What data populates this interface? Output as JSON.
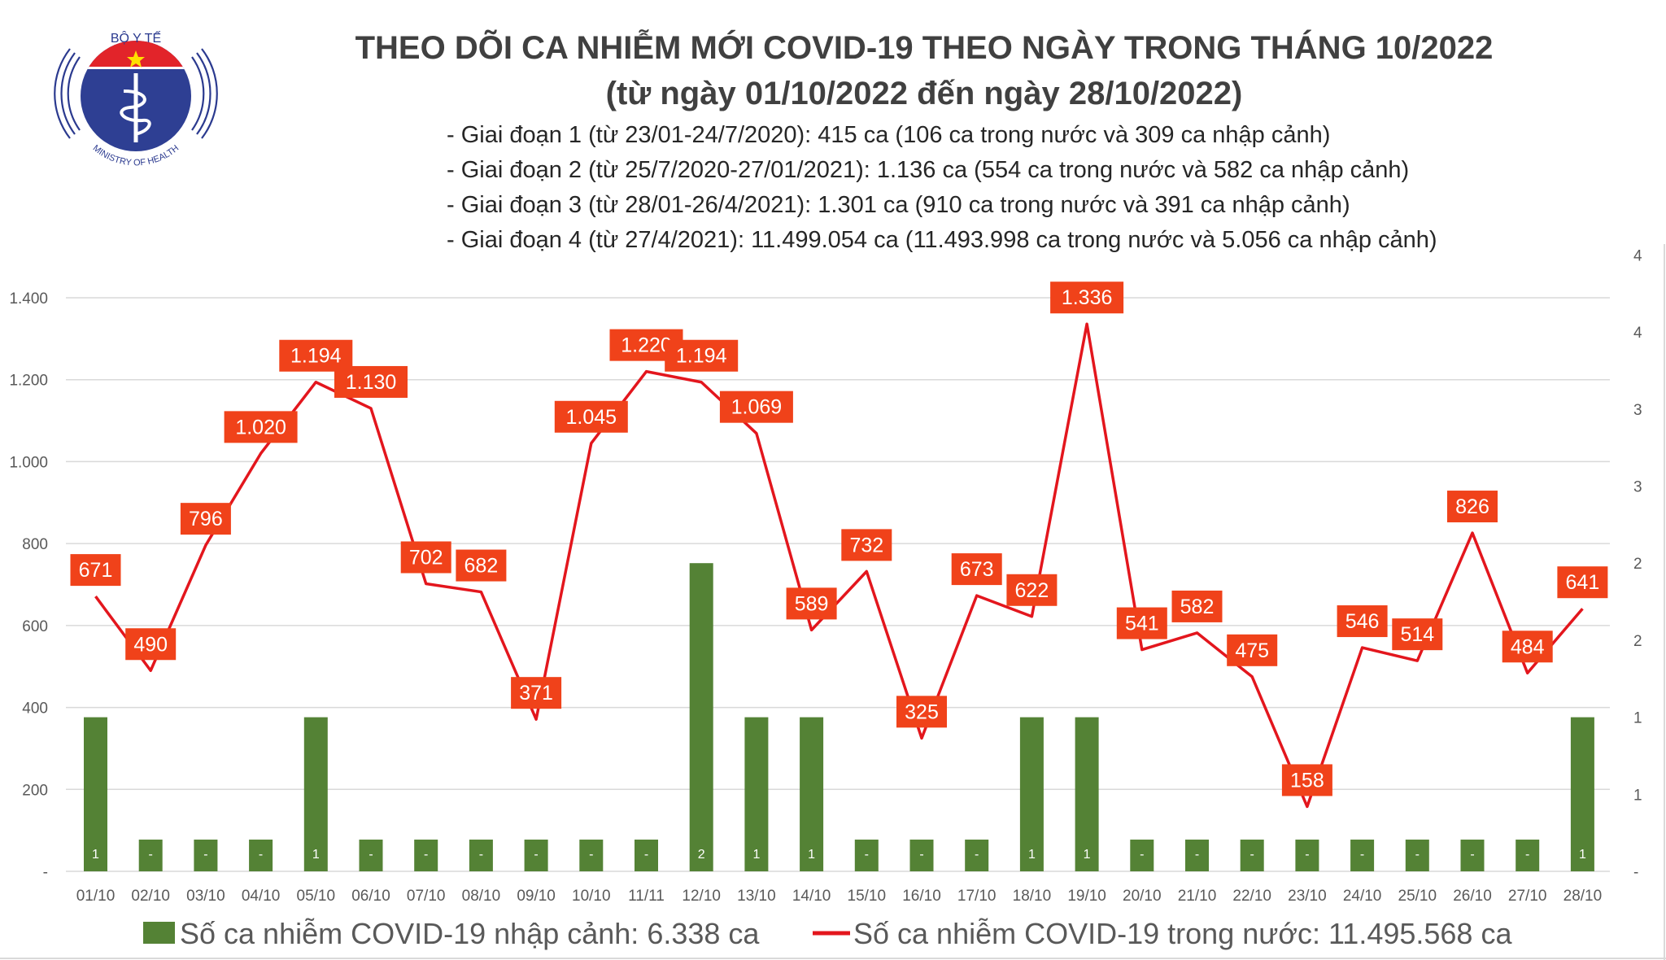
{
  "header": {
    "logo_text_top": "BỘ Y TẾ",
    "logo_text_bottom": "MINISTRY OF HEALTH",
    "title_line1": "THEO DÕI CA NHIỄM MỚI COVID-19 THEO NGÀY TRONG THÁNG 10/2022",
    "title_line2": "(từ ngày 01/10/2022 đến ngày 28/10/2022)",
    "bullets": [
      "- Giai đoạn 1 (từ 23/01-24/7/2020): 415 ca (106 ca trong nước và 309 ca nhập cảnh)",
      "- Giai đoạn 2 (từ 25/7/2020-27/01/2021): 1.136 ca (554 ca trong nước và 582 ca nhập cảnh)",
      "- Giai đoạn 3 (từ 28/01-26/4/2021): 1.301 ca (910 ca trong nước và 391 ca nhập cảnh)",
      "- Giai đoạn 4 (từ 27/4/2021): 11.499.054 ca (11.493.998 ca trong nước và 5.056 ca nhập cảnh)"
    ]
  },
  "colors": {
    "bar": "#548235",
    "line": "#e3161d",
    "label_bg": "#f0421a",
    "grid": "#d9d9d9"
  },
  "chart_data": {
    "type": "bar+line",
    "categories": [
      "01/10",
      "02/10",
      "03/10",
      "04/10",
      "05/10",
      "06/10",
      "07/10",
      "08/10",
      "09/10",
      "10/10",
      "11/11",
      "12/10",
      "13/10",
      "14/10",
      "15/10",
      "16/10",
      "17/10",
      "18/10",
      "19/10",
      "20/10",
      "21/10",
      "22/10",
      "23/10",
      "24/10",
      "25/10",
      "26/10",
      "27/10",
      "28/10"
    ],
    "series": [
      {
        "name": "Số ca nhiễm COVID-19 nhập cảnh: 6.338 ca",
        "type": "bar",
        "axis": "right",
        "values": [
          1,
          0,
          0,
          0,
          1,
          0,
          0,
          0,
          0,
          0,
          0,
          2,
          1,
          1,
          0,
          0,
          0,
          1,
          1,
          0,
          0,
          0,
          0,
          0,
          0,
          0,
          0,
          1
        ],
        "labels": [
          "1",
          "-",
          "-",
          "-",
          "1",
          "-",
          "-",
          "-",
          "-",
          "-",
          "-",
          "2",
          "1",
          "1",
          "-",
          "-",
          "-",
          "1",
          "1",
          "-",
          "-",
          "-",
          "-",
          "-",
          "-",
          "-",
          "-",
          "1"
        ]
      },
      {
        "name": "Số ca nhiễm COVID-19 trong nước: 11.495.568 ca",
        "type": "line",
        "axis": "left",
        "values": [
          671,
          490,
          796,
          1020,
          1194,
          1130,
          702,
          682,
          371,
          1045,
          1220,
          1194,
          1069,
          589,
          732,
          325,
          673,
          622,
          1336,
          541,
          582,
          475,
          158,
          546,
          514,
          826,
          484,
          641
        ],
        "labels": [
          "671",
          "490",
          "796",
          "1.020",
          "1.194",
          "1.130",
          "702",
          "682",
          "371",
          "1.045",
          "1.220",
          "1.194",
          "1.069",
          "589",
          "732",
          "325",
          "673",
          "622",
          "1.336",
          "541",
          "582",
          "475",
          "158",
          "546",
          "514",
          "826",
          "484",
          "641"
        ]
      }
    ],
    "left_axis": {
      "ylim": [
        0,
        1400
      ],
      "ticks": [
        "-",
        "200",
        "400",
        "600",
        "800",
        "1.000",
        "1.200",
        "1.400"
      ]
    },
    "right_axis": {
      "ylim": [
        0,
        4.5
      ],
      "ticks": [
        "-",
        "1",
        "1",
        "2",
        "2",
        "3",
        "3",
        "4",
        "4"
      ]
    },
    "grid": true,
    "legend_placement": "bottom"
  }
}
